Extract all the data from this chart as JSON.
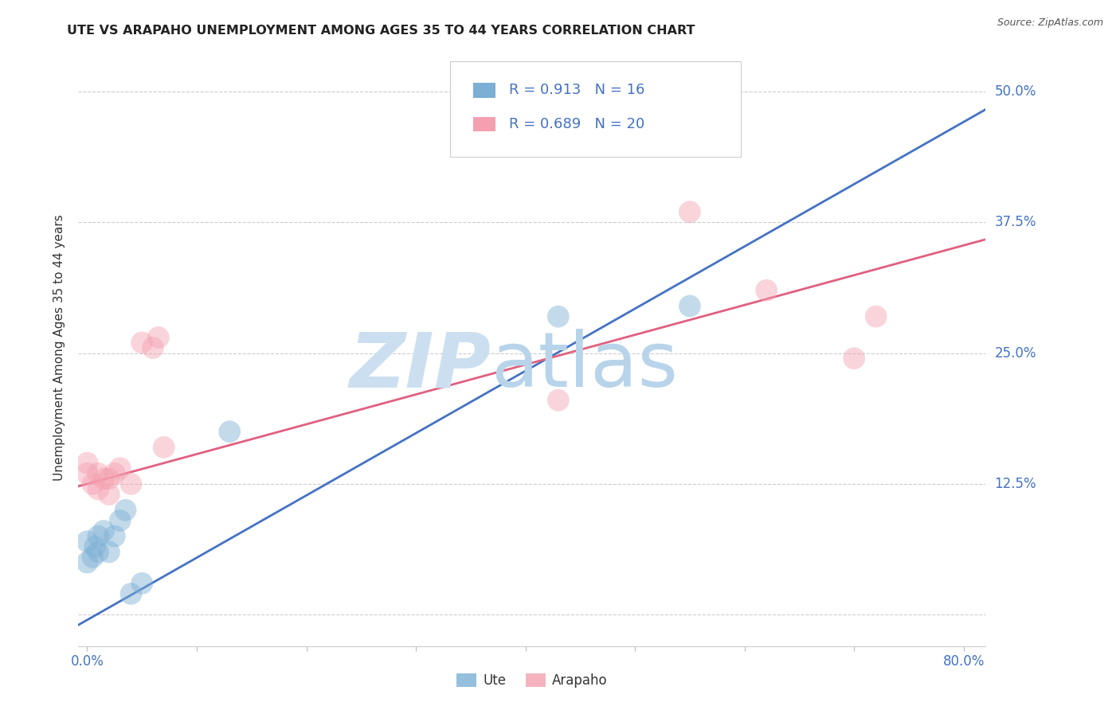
{
  "title": "UTE VS ARAPAHO UNEMPLOYMENT AMONG AGES 35 TO 44 YEARS CORRELATION CHART",
  "source": "Source: ZipAtlas.com",
  "ylabel": "Unemployment Among Ages 35 to 44 years",
  "xlim": [
    -0.008,
    0.82
  ],
  "ylim": [
    -0.03,
    0.54
  ],
  "xtick_positions": [
    0.0,
    0.1,
    0.2,
    0.3,
    0.4,
    0.5,
    0.6,
    0.7,
    0.8
  ],
  "ytick_positions": [
    0.0,
    0.125,
    0.25,
    0.375,
    0.5
  ],
  "yticklabels": [
    "",
    "12.5%",
    "25.0%",
    "37.5%",
    "50.0%"
  ],
  "grid_color": "#cccccc",
  "background_color": "#ffffff",
  "ute_color": "#7bafd4",
  "arapaho_color": "#f4a0b0",
  "ute_line_color": "#4472c4",
  "arapaho_line_color": "#e06080",
  "ute_R": 0.913,
  "ute_N": 16,
  "arapaho_R": 0.689,
  "arapaho_N": 20,
  "ute_x": [
    0.0,
    0.0,
    0.005,
    0.007,
    0.01,
    0.01,
    0.015,
    0.02,
    0.025,
    0.03,
    0.035,
    0.04,
    0.05,
    0.13,
    0.43,
    0.55
  ],
  "ute_y": [
    0.05,
    0.07,
    0.055,
    0.065,
    0.06,
    0.075,
    0.08,
    0.06,
    0.075,
    0.09,
    0.1,
    0.02,
    0.03,
    0.175,
    0.285,
    0.295
  ],
  "arapaho_x": [
    0.0,
    0.0,
    0.005,
    0.01,
    0.01,
    0.015,
    0.02,
    0.02,
    0.025,
    0.03,
    0.04,
    0.05,
    0.06,
    0.065,
    0.07,
    0.43,
    0.55,
    0.62,
    0.7,
    0.72
  ],
  "arapaho_y": [
    0.135,
    0.145,
    0.125,
    0.12,
    0.135,
    0.13,
    0.115,
    0.13,
    0.135,
    0.14,
    0.125,
    0.26,
    0.255,
    0.265,
    0.16,
    0.205,
    0.385,
    0.31,
    0.245,
    0.285
  ],
  "ute_line_slope": 0.595,
  "ute_line_intercept": -0.005,
  "arapaho_line_slope": 0.285,
  "arapaho_line_intercept": 0.125,
  "marker_size": 400,
  "marker_alpha": 0.45,
  "tick_color": "#4472c4",
  "tick_fontsize": 12,
  "title_fontsize": 11.5,
  "axis_label_fontsize": 11,
  "source_fontsize": 9,
  "legend_fontsize": 13
}
